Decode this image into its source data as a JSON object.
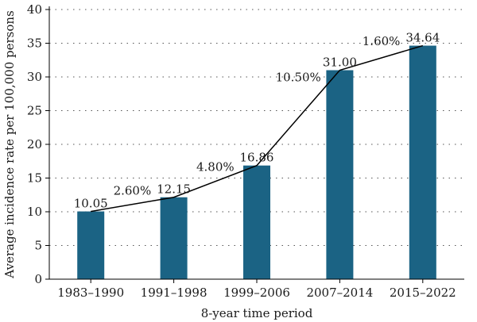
{
  "chart_data": {
    "type": "bar",
    "categories": [
      "1983–1990",
      "1991–1998",
      "1999–2006",
      "2007–2014",
      "2015–2022"
    ],
    "values": [
      10.05,
      12.15,
      16.86,
      31.0,
      34.64
    ],
    "value_labels": [
      "10.05",
      "12.15",
      "16.86",
      "31.00",
      "34.64"
    ],
    "trend_line": true,
    "percent_changes": [
      "2.60%",
      "4.80%",
      "10.50%",
      "1.60%"
    ],
    "xlabel": "8-year time period",
    "ylabel": "Average incidence rate per 100,000 persons",
    "ylim": [
      0,
      40
    ],
    "yticks": [
      0,
      5,
      10,
      15,
      20,
      25,
      30,
      35,
      40
    ],
    "grid": "horizontal dotted",
    "bar_color": "#1b6384",
    "line_color": "#000000"
  }
}
